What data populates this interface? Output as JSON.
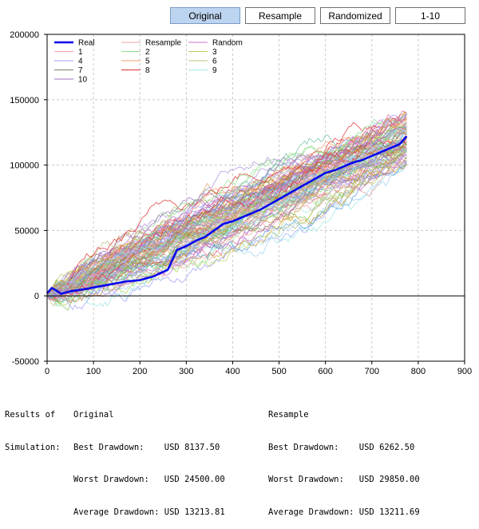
{
  "toolbar": {
    "buttons": [
      {
        "label": "Original",
        "active": true
      },
      {
        "label": "Resample",
        "active": false
      },
      {
        "label": "Randomized",
        "active": false
      },
      {
        "label": "1-10",
        "active": false
      }
    ]
  },
  "chart_data": {
    "type": "line",
    "xlim": [
      0,
      900
    ],
    "ylim": [
      -50000,
      200000
    ],
    "x_ticks": [
      "0",
      "100",
      "200",
      "300",
      "400",
      "500",
      "600",
      "700",
      "800",
      "900"
    ],
    "y_ticks": [
      "200000",
      "150000",
      "100000",
      "50000",
      "0",
      "-50000"
    ],
    "grid": true,
    "legend_placement": "top-left",
    "legend": [
      {
        "name": "Real",
        "color": "#0000ee"
      },
      {
        "name": "Resample",
        "color": "#e8a0a0"
      },
      {
        "name": "Random",
        "color": "#d070d0"
      },
      {
        "name": "1",
        "color": "#f4a8a8"
      },
      {
        "name": "2",
        "color": "#90e090"
      },
      {
        "name": "3",
        "color": "#b8d060"
      },
      {
        "name": "4",
        "color": "#a0a0ff"
      },
      {
        "name": "5",
        "color": "#f0a070"
      },
      {
        "name": "6",
        "color": "#c0c080"
      },
      {
        "name": "7",
        "color": "#808060"
      },
      {
        "name": "8",
        "color": "#e03030"
      },
      {
        "name": "9",
        "color": "#a0e8e8"
      },
      {
        "name": "10",
        "color": "#a070c0"
      }
    ],
    "real_series": {
      "name": "Real",
      "x": [
        0,
        10,
        20,
        30,
        50,
        80,
        110,
        140,
        170,
        200,
        230,
        260,
        280,
        300,
        320,
        340,
        360,
        380,
        400,
        420,
        440,
        460,
        480,
        500,
        520,
        540,
        560,
        580,
        600,
        620,
        640,
        660,
        680,
        700,
        720,
        740,
        760,
        775
      ],
      "y": [
        2000,
        6000,
        4000,
        1500,
        3500,
        5000,
        7000,
        9000,
        11000,
        12000,
        15000,
        20000,
        35000,
        38000,
        42000,
        45000,
        50000,
        55000,
        57000,
        60000,
        63000,
        66000,
        70000,
        74000,
        78000,
        82000,
        86000,
        90000,
        94000,
        96000,
        99000,
        102000,
        104000,
        107000,
        110000,
        113000,
        116000,
        122000
      ]
    },
    "simulations": {
      "count": 100,
      "x_end": 775,
      "y_end_range": [
        100000,
        140000
      ]
    }
  },
  "results": {
    "heading_line1": "Results of",
    "heading_line2": "Simulation:",
    "original": {
      "title": "Original",
      "best": "Best Drawdown:    USD 8137.50",
      "worst": "Worst Drawdown:   USD 24500.00",
      "average": "Average Drawdown: USD 13213.81"
    },
    "resample": {
      "title": "Resample",
      "best": "Best Drawdown:    USD 6262.50",
      "worst": "Worst Drawdown:   USD 29850.00",
      "average": "Average Drawdown: USD 13211.69"
    }
  }
}
